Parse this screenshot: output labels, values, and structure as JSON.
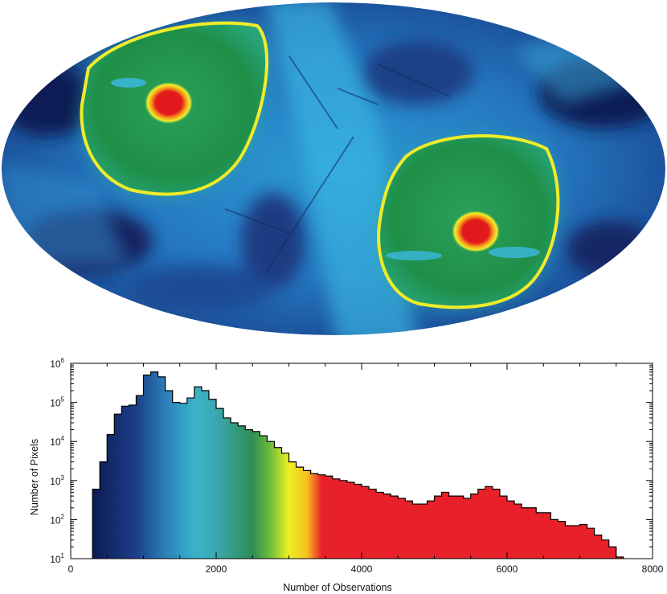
{
  "chart_data": [
    {
      "type": "heatmap",
      "projection": "mollweide",
      "title": "",
      "colorscale": [
        "#101a44",
        "#1b3f86",
        "#1f6fb7",
        "#2c9bd4",
        "#36b0cf",
        "#2e9e6a",
        "#1f8f45",
        "#b8d83a",
        "#f7f028",
        "#f6a21b",
        "#e31a1c"
      ],
      "features": {
        "contour_color": "#f0ec2a",
        "peak_color": "#e31a1c"
      }
    },
    {
      "type": "bar",
      "subtype": "histogram",
      "xlabel": "Number of Observations",
      "ylabel": "Number of Pixels",
      "xlim": [
        0,
        8000
      ],
      "ylim": [
        10,
        1000000
      ],
      "yscale": "log",
      "x_ticks": [
        0,
        2000,
        4000,
        6000,
        8000
      ],
      "x_tick_labels": [
        "0",
        "2000",
        "4000",
        "6000",
        "8000"
      ],
      "y_ticks": [
        {
          "base": "10",
          "exp": "1"
        },
        {
          "base": "10",
          "exp": "2"
        },
        {
          "base": "10",
          "exp": "3"
        },
        {
          "base": "10",
          "exp": "4"
        },
        {
          "base": "10",
          "exp": "5"
        },
        {
          "base": "10",
          "exp": "6"
        }
      ],
      "bin_width": 100,
      "x": [
        300,
        400,
        500,
        600,
        700,
        800,
        900,
        1000,
        1100,
        1200,
        1300,
        1400,
        1500,
        1600,
        1700,
        1800,
        1900,
        2000,
        2100,
        2200,
        2300,
        2400,
        2500,
        2600,
        2700,
        2800,
        2900,
        3000,
        3100,
        3200,
        3300,
        3400,
        3500,
        3600,
        3700,
        3800,
        3900,
        4000,
        4100,
        4200,
        4300,
        4400,
        4500,
        4600,
        4700,
        4800,
        4900,
        5000,
        5100,
        5200,
        5300,
        5400,
        5500,
        5600,
        5700,
        5800,
        5900,
        6000,
        6100,
        6200,
        6300,
        6400,
        6500,
        6600,
        6700,
        6800,
        6900,
        7000,
        7100,
        7200,
        7300,
        7400,
        7500
      ],
      "values": [
        600,
        3000,
        15000,
        50000,
        80000,
        85000,
        150000,
        500000,
        600000,
        450000,
        200000,
        100000,
        95000,
        130000,
        250000,
        200000,
        120000,
        70000,
        40000,
        30000,
        25000,
        20000,
        18000,
        14000,
        10000,
        7000,
        5000,
        3000,
        2200,
        1800,
        1500,
        1400,
        1300,
        1100,
        1000,
        900,
        800,
        700,
        600,
        500,
        450,
        400,
        350,
        300,
        250,
        250,
        300,
        400,
        500,
        400,
        400,
        350,
        450,
        600,
        700,
        600,
        400,
        300,
        250,
        200,
        200,
        150,
        150,
        100,
        90,
        70,
        70,
        75,
        60,
        40,
        30,
        20,
        11
      ],
      "color_stops": [
        {
          "x": 300,
          "color": "#0d1b52"
        },
        {
          "x": 900,
          "color": "#1c3f8a"
        },
        {
          "x": 1300,
          "color": "#2a7fb8"
        },
        {
          "x": 1700,
          "color": "#3ab3c8"
        },
        {
          "x": 2000,
          "color": "#3aa8b2"
        },
        {
          "x": 2500,
          "color": "#2e8e52"
        },
        {
          "x": 2750,
          "color": "#6fbf3a"
        },
        {
          "x": 3000,
          "color": "#eef022"
        },
        {
          "x": 3250,
          "color": "#f7c01f"
        },
        {
          "x": 3450,
          "color": "#e8202a"
        },
        {
          "x": 7600,
          "color": "#e8202a"
        }
      ]
    }
  ]
}
